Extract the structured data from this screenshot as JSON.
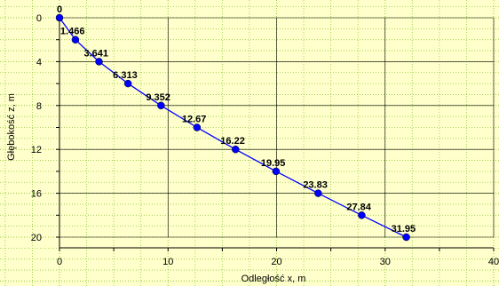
{
  "chart_data": {
    "type": "line",
    "xlabel": "Odległość x, m",
    "ylabel": "Głębokość z, m",
    "xlim": [
      0,
      40
    ],
    "ylim": [
      0,
      20
    ],
    "y_inverted": true,
    "x_ticks": [
      "0",
      "10",
      "20",
      "30",
      "40"
    ],
    "y_ticks": [
      "0",
      "4",
      "8",
      "12",
      "16",
      "20"
    ],
    "grid": "dotted major and minor",
    "series": [
      {
        "color": "#0000ff",
        "marker": "circle",
        "points": [
          {
            "x": 0,
            "y": 0,
            "label": "0"
          },
          {
            "x": 1.466,
            "y": 2,
            "label": "1.466"
          },
          {
            "x": 3.641,
            "y": 4,
            "label": "3.641"
          },
          {
            "x": 6.313,
            "y": 6,
            "label": "6.313"
          },
          {
            "x": 9.352,
            "y": 8,
            "label": "9.352"
          },
          {
            "x": 12.67,
            "y": 10,
            "label": "12.67"
          },
          {
            "x": 16.22,
            "y": 12,
            "label": "16.22"
          },
          {
            "x": 19.95,
            "y": 14,
            "label": "19.95"
          },
          {
            "x": 23.83,
            "y": 16,
            "label": "23.83"
          },
          {
            "x": 27.84,
            "y": 18,
            "label": "27.84"
          },
          {
            "x": 31.95,
            "y": 20,
            "label": "31.95"
          }
        ]
      }
    ],
    "colors": {
      "background": "#ffffcc",
      "grid": "#8fc83c",
      "series": "#0000ff"
    }
  }
}
